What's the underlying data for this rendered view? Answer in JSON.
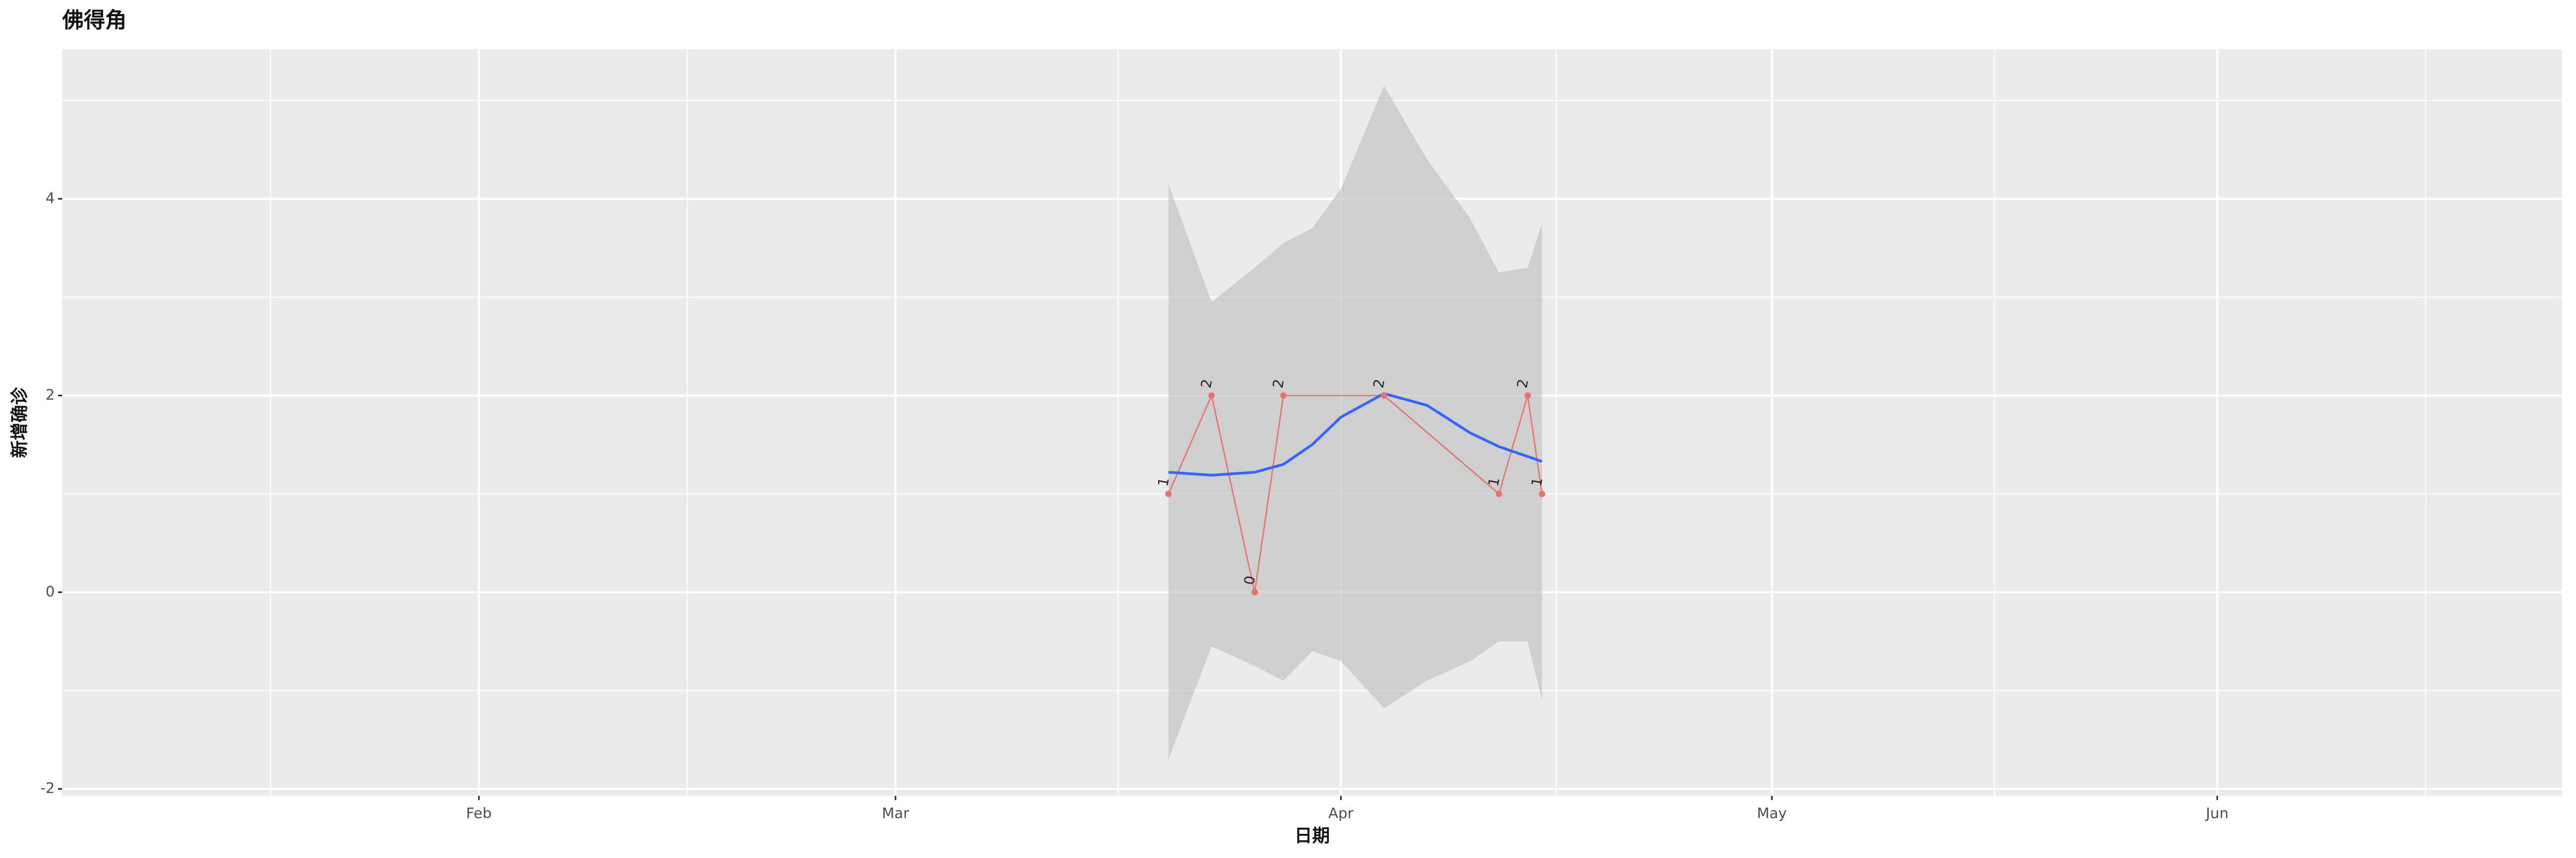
{
  "chart_data": {
    "type": "line",
    "title": "佛得角",
    "x_label": "日期",
    "y_label": "新增确诊",
    "xlim": [
      2,
      176
    ],
    "xticks": [
      {
        "value": 31,
        "label": "Feb"
      },
      {
        "value": 60,
        "label": "Mar"
      },
      {
        "value": 91,
        "label": "Apr"
      },
      {
        "value": 121,
        "label": "May"
      },
      {
        "value": 152,
        "label": "Jun"
      }
    ],
    "x_minor_grid": [
      16.5,
      45.5,
      75.5,
      106,
      136.5,
      166.5
    ],
    "ylim": [
      -2.07,
      5.52
    ],
    "yticks": [
      -2,
      0,
      2,
      4
    ],
    "y_minor_grid": [
      -1,
      1,
      3,
      5
    ],
    "grid": true,
    "points": {
      "color": "#e8736c",
      "x": [
        79,
        82,
        85,
        87,
        94,
        102,
        104,
        105
      ],
      "values": [
        1,
        2,
        0,
        2,
        2,
        1,
        2,
        1
      ]
    },
    "smooth": {
      "color": "#3366ff",
      "band_color": "#bdbdbd",
      "x": [
        79,
        82,
        85,
        87,
        89,
        91,
        94,
        97,
        100,
        102,
        104,
        105
      ],
      "values": [
        1.22,
        1.19,
        1.22,
        1.3,
        1.5,
        1.78,
        2.02,
        1.9,
        1.62,
        1.48,
        1.38,
        1.33
      ],
      "lower": [
        -1.7,
        -0.55,
        -0.75,
        -0.9,
        -0.6,
        -0.7,
        -1.18,
        -0.9,
        -0.7,
        -0.5,
        -0.5,
        -1.1
      ],
      "upper": [
        4.15,
        2.95,
        3.3,
        3.55,
        3.7,
        4.1,
        5.15,
        4.4,
        3.8,
        3.25,
        3.3,
        3.75
      ]
    }
  }
}
